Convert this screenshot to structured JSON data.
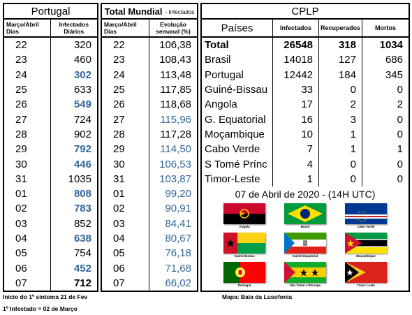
{
  "portugal": {
    "title": "Portugal",
    "col1": [
      "Março/Abril",
      "Dias"
    ],
    "col2": [
      "Infectados",
      "Diários"
    ],
    "rows": [
      {
        "day": "22",
        "value": "320",
        "style": ""
      },
      {
        "day": "23",
        "value": "460",
        "style": ""
      },
      {
        "day": "24",
        "value": "302",
        "style": "blue"
      },
      {
        "day": "25",
        "value": "633",
        "style": ""
      },
      {
        "day": "26",
        "value": "549",
        "style": "blue"
      },
      {
        "day": "27",
        "value": "724",
        "style": ""
      },
      {
        "day": "28",
        "value": "902",
        "style": ""
      },
      {
        "day": "29",
        "value": "792",
        "style": "blue"
      },
      {
        "day": "30",
        "value": "446",
        "style": "blue"
      },
      {
        "day": "31",
        "value": "1035",
        "style": ""
      },
      {
        "day": "01",
        "value": "808",
        "style": "blue"
      },
      {
        "day": "02",
        "value": "783",
        "style": "blue"
      },
      {
        "day": "03",
        "value": "852",
        "style": ""
      },
      {
        "day": "04",
        "value": "638",
        "style": "blue"
      },
      {
        "day": "05",
        "value": "754",
        "style": ""
      },
      {
        "day": "06",
        "value": "452",
        "style": "blue"
      },
      {
        "day": "07",
        "value": "712",
        "style": "bold"
      }
    ]
  },
  "world": {
    "title": "Total Mundial",
    "subtitle": "- Infectados",
    "col1": [
      "Março/Abril",
      "Dias"
    ],
    "col2": [
      "Evolução",
      "semanal (%)"
    ],
    "rows": [
      {
        "day": "22",
        "value": "106,38",
        "down": false
      },
      {
        "day": "23",
        "value": "108,43",
        "down": false
      },
      {
        "day": "24",
        "value": "113,48",
        "down": false
      },
      {
        "day": "25",
        "value": "117,85",
        "down": false
      },
      {
        "day": "26",
        "value": "118,68",
        "down": false
      },
      {
        "day": "27",
        "value": "115,96",
        "down": true
      },
      {
        "day": "28",
        "value": "117,28",
        "down": false
      },
      {
        "day": "29",
        "value": "114,50",
        "down": true
      },
      {
        "day": "30",
        "value": "106,53",
        "down": true
      },
      {
        "day": "31",
        "value": "103,87",
        "down": true
      },
      {
        "day": "01",
        "value": "99,20",
        "down": true
      },
      {
        "day": "02",
        "value": "90,91",
        "down": true
      },
      {
        "day": "03",
        "value": "84,41",
        "down": true
      },
      {
        "day": "04",
        "value": "80,67",
        "down": true
      },
      {
        "day": "05",
        "value": "76,18",
        "down": true
      },
      {
        "day": "06",
        "value": "71,68",
        "down": true
      },
      {
        "day": "07",
        "value": "66,02",
        "down": true
      }
    ]
  },
  "cplp": {
    "title": "CPLP",
    "headers": {
      "country": "Países",
      "infected": "Infectados",
      "recovered": "Recuperados",
      "deaths": "Mortos"
    },
    "rows": [
      {
        "country": "Total",
        "infected": "26548",
        "recovered": "318",
        "deaths": "1034"
      },
      {
        "country": "Brasil",
        "infected": "14018",
        "recovered": "127",
        "deaths": "686"
      },
      {
        "country": "Portugal",
        "infected": "12442",
        "recovered": "184",
        "deaths": "345"
      },
      {
        "country": "Guiné-Bissau",
        "infected": "33",
        "recovered": "0",
        "deaths": "0"
      },
      {
        "country": "Angola",
        "infected": "17",
        "recovered": "2",
        "deaths": "2"
      },
      {
        "country": "G. Equatorial",
        "infected": "16",
        "recovered": "3",
        "deaths": "0"
      },
      {
        "country": "Moçambique",
        "infected": "10",
        "recovered": "1",
        "deaths": "0"
      },
      {
        "country": "Cabo Verde",
        "infected": "7",
        "recovered": "1",
        "deaths": "1"
      },
      {
        "country": "S Tomé Prínc",
        "infected": "4",
        "recovered": "0",
        "deaths": "0"
      },
      {
        "country": "Timor-Leste",
        "infected": "1",
        "recovered": "0",
        "deaths": "0"
      }
    ],
    "date": "07 de Abril de 2020 - (14H UTC)",
    "flags": [
      {
        "name": "Angola",
        "icon": "angola-flag-icon"
      },
      {
        "name": "Brasil",
        "icon": "brasil-flag-icon"
      },
      {
        "name": "Cabo Verde",
        "icon": "cabo-verde-flag-icon"
      },
      {
        "name": "Guiné-Bissau",
        "icon": "guine-bissau-flag-icon"
      },
      {
        "name": "Guiné-Equatorial",
        "icon": "guine-equatorial-flag-icon"
      },
      {
        "name": "Moçambique",
        "icon": "mocambique-flag-icon"
      },
      {
        "name": "Portugal",
        "icon": "portugal-flag-icon"
      },
      {
        "name": "São Tomé e Príncipe",
        "icon": "sao-tome-flag-icon"
      },
      {
        "name": "Timor Leste",
        "icon": "timor-leste-flag-icon"
      }
    ]
  },
  "footer": {
    "line1": "Inicio do 1º sintoma 21 de Fev",
    "line2": "1º Infectado = 02 de Março",
    "map": "Mapa: Baía da Lusofonia"
  }
}
